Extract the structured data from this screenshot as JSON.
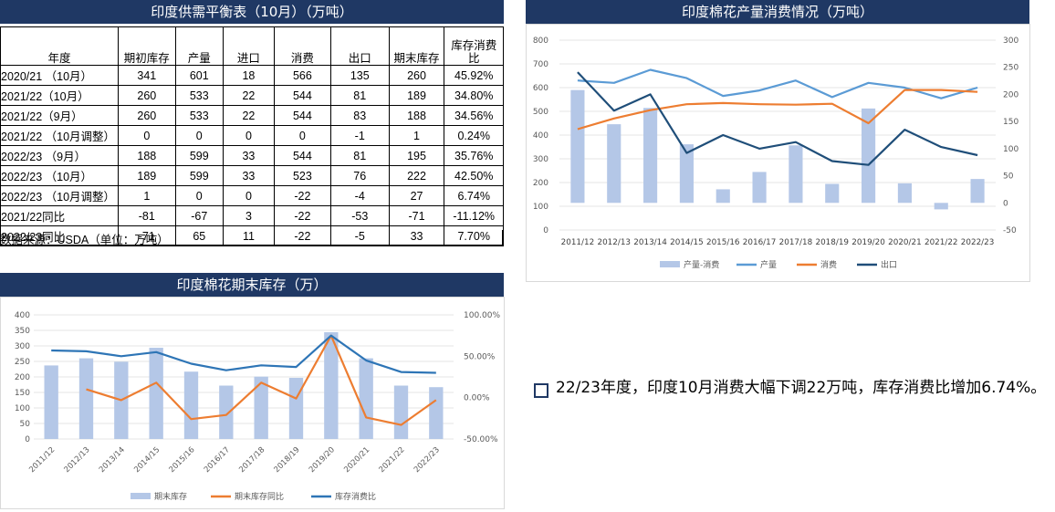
{
  "table": {
    "title": "印度供需平衡表（10月）（万吨）",
    "headers": [
      "年度",
      "期初库存",
      "产量",
      "进口",
      "消费",
      "出口",
      "期末库存",
      "库存消费比"
    ],
    "rows": [
      [
        "2020/21 （10月）",
        "341",
        "601",
        "18",
        "566",
        "135",
        "260",
        "45.92%"
      ],
      [
        "2021/22（10月）",
        "260",
        "533",
        "22",
        "544",
        "81",
        "189",
        "34.80%"
      ],
      [
        "2021/22（9月）",
        "260",
        "533",
        "22",
        "544",
        "83",
        "188",
        "34.56%"
      ],
      [
        "2021/22 （10月调整）",
        "0",
        "0",
        "0",
        "0",
        "-1",
        "1",
        "0.24%"
      ],
      [
        "2022/23 （9月）",
        "188",
        "599",
        "33",
        "544",
        "81",
        "195",
        "35.76%"
      ],
      [
        "2022/23 （10月）",
        "189",
        "599",
        "33",
        "523",
        "76",
        "222",
        "42.50%"
      ],
      [
        "2022/23 （10月调整）",
        "1",
        "0",
        "0",
        "-22",
        "-4",
        "27",
        "6.74%"
      ],
      [
        "2021/22同比",
        "-81",
        "-67",
        "3",
        "-22",
        "-53",
        "-71",
        "-11.12%"
      ],
      [
        "2022/23同比",
        "-71",
        "65",
        "11",
        "-22",
        "-5",
        "33",
        "7.70%"
      ]
    ],
    "note": "数据来源：USDA（单位：万吨）"
  },
  "chart_data": [
    {
      "type": "bar+line",
      "title": "印度棉花产量消费情况（万吨）",
      "categories": [
        "2011/12",
        "2012/13",
        "2013/14",
        "2014/15",
        "2015/16",
        "2016/17",
        "2017/18",
        "2018/19",
        "2019/20",
        "2020/21",
        "2021/22",
        "2022/23"
      ],
      "y_left": {
        "min": 0,
        "max": 800,
        "ticks": [
          "0",
          "100",
          "200",
          "300",
          "400",
          "500",
          "600",
          "700",
          "800"
        ]
      },
      "y_right": {
        "min": -50,
        "max": 300,
        "ticks": [
          "-50",
          "0",
          "50",
          "100",
          "150",
          "200",
          "250",
          "300"
        ]
      },
      "series": [
        {
          "name": "产量-消费",
          "kind": "bar",
          "axis": "right",
          "color": "#b4c7e7",
          "values": [
            208,
            145,
            175,
            108,
            25,
            57,
            106,
            35,
            174,
            36,
            -12,
            44
          ]
        },
        {
          "name": "产量",
          "kind": "line",
          "axis": "left",
          "color": "#5b9bd5",
          "values": [
            630,
            620,
            675,
            640,
            565,
            588,
            630,
            560,
            620,
            600,
            555,
            600
          ]
        },
        {
          "name": "消费",
          "kind": "line",
          "axis": "left",
          "color": "#ed7d31",
          "values": [
            425,
            470,
            505,
            530,
            535,
            530,
            528,
            532,
            450,
            590,
            590,
            582
          ]
        },
        {
          "name": "出口",
          "kind": "line",
          "axis": "right",
          "color": "#1f4e79",
          "values": [
            241,
            170,
            200,
            92,
            125,
            100,
            112,
            77,
            70,
            135,
            103,
            88
          ]
        }
      ],
      "legend_position": "bottom"
    },
    {
      "type": "bar+line",
      "title": "印度棉花期末库存（万）",
      "categories": [
        "2011/12",
        "2012/13",
        "2013/14",
        "2014/15",
        "2015/16",
        "2016/17",
        "2017/18",
        "2018/19",
        "2019/20",
        "2020/21",
        "2021/22",
        "2022/23"
      ],
      "y_left": {
        "min": 0,
        "max": 400,
        "ticks": [
          "0",
          "50",
          "100",
          "150",
          "200",
          "250",
          "300",
          "350",
          "400"
        ]
      },
      "y_right": {
        "min": -50,
        "max": 100,
        "ticks": [
          "-50.00%",
          "0.00%",
          "50.00%",
          "100.00%"
        ]
      },
      "series": [
        {
          "name": "期末库存",
          "kind": "bar",
          "axis": "left",
          "color": "#b4c7e7",
          "values": [
            237,
            260,
            249,
            294,
            217,
            172,
            201,
            197,
            344,
            260,
            172,
            167
          ]
        },
        {
          "name": "期末库存同比",
          "kind": "line",
          "axis": "right",
          "color": "#ed7d31",
          "values": [
            null,
            10,
            -3,
            18,
            -26,
            -21,
            18,
            -1,
            75,
            -24,
            -33,
            -3
          ]
        },
        {
          "name": "库存消费比",
          "kind": "line",
          "axis": "right",
          "color": "#2e75b6",
          "values": [
            57,
            56,
            50,
            55,
            41,
            33,
            39,
            37,
            75,
            45,
            31,
            30
          ]
        }
      ],
      "legend_position": "bottom"
    }
  ],
  "bullet": {
    "text": "22/23年度，印度10月消费大幅下调22万吨，库存消费比增加6.74%。"
  }
}
